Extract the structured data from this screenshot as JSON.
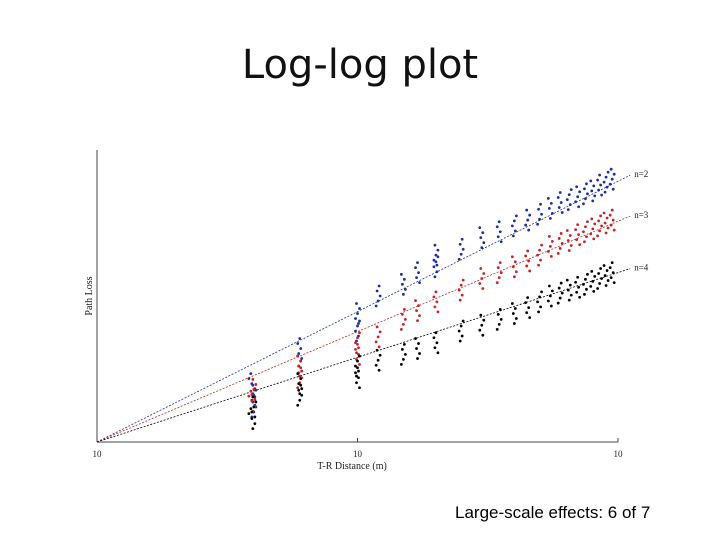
{
  "slide": {
    "title": "Log-log plot",
    "footer": "Large-scale effects: 6 of 7"
  },
  "chart_data": {
    "type": "scatter",
    "title": "",
    "xlabel": "T-R Distance (m)",
    "ylabel": "Path Loss",
    "x_scale": "log",
    "x_ticks": [
      "10",
      "10",
      "10"
    ],
    "xlim": [
      1,
      100
    ],
    "grid": false,
    "line_color_default": "#000000",
    "series": [
      {
        "name": "n=2",
        "color": "#1f2f9a",
        "points": [
          [
            4,
            0.8
          ],
          [
            4,
            0.84
          ],
          [
            4,
            0.88
          ],
          [
            6,
            0.74
          ],
          [
            6,
            0.68
          ],
          [
            10,
            0.62
          ],
          [
            10,
            0.56
          ],
          [
            12,
            0.5
          ],
          [
            15,
            0.46
          ],
          [
            17,
            0.42
          ],
          [
            20,
            0.4
          ],
          [
            20,
            0.36
          ],
          [
            25,
            0.34
          ],
          [
            30,
            0.3
          ],
          [
            35,
            0.28
          ],
          [
            40,
            0.26
          ],
          [
            45,
            0.24
          ],
          [
            50,
            0.22
          ],
          [
            55,
            0.2
          ],
          [
            60,
            0.18
          ],
          [
            65,
            0.17
          ],
          [
            70,
            0.16
          ],
          [
            75,
            0.15
          ],
          [
            80,
            0.14
          ],
          [
            85,
            0.12
          ],
          [
            90,
            0.11
          ],
          [
            95,
            0.1
          ]
        ]
      },
      {
        "name": "n=3",
        "color": "#c0262a",
        "points": [
          [
            4,
            0.86
          ],
          [
            4,
            0.82
          ],
          [
            6,
            0.78
          ],
          [
            6,
            0.74
          ],
          [
            10,
            0.7
          ],
          [
            10,
            0.66
          ],
          [
            12,
            0.64
          ],
          [
            15,
            0.58
          ],
          [
            17,
            0.55
          ],
          [
            20,
            0.52
          ],
          [
            25,
            0.48
          ],
          [
            30,
            0.44
          ],
          [
            35,
            0.42
          ],
          [
            40,
            0.4
          ],
          [
            45,
            0.38
          ],
          [
            50,
            0.36
          ],
          [
            55,
            0.33
          ],
          [
            60,
            0.32
          ],
          [
            65,
            0.31
          ],
          [
            70,
            0.29
          ],
          [
            75,
            0.28
          ],
          [
            80,
            0.27
          ],
          [
            85,
            0.26
          ],
          [
            90,
            0.25
          ],
          [
            95,
            0.24
          ]
        ]
      },
      {
        "name": "n=4",
        "color": "#000000",
        "points": [
          [
            4,
            0.92
          ],
          [
            4,
            0.88
          ],
          [
            6,
            0.84
          ],
          [
            6,
            0.8
          ],
          [
            10,
            0.78
          ],
          [
            10,
            0.74
          ],
          [
            12,
            0.72
          ],
          [
            15,
            0.7
          ],
          [
            17,
            0.68
          ],
          [
            20,
            0.66
          ],
          [
            25,
            0.62
          ],
          [
            30,
            0.6
          ],
          [
            35,
            0.58
          ],
          [
            40,
            0.56
          ],
          [
            45,
            0.54
          ],
          [
            50,
            0.52
          ],
          [
            55,
            0.5
          ],
          [
            60,
            0.49
          ],
          [
            65,
            0.48
          ],
          [
            70,
            0.47
          ],
          [
            75,
            0.46
          ],
          [
            80,
            0.45
          ],
          [
            85,
            0.44
          ],
          [
            90,
            0.43
          ],
          [
            95,
            0.42
          ]
        ]
      }
    ]
  }
}
